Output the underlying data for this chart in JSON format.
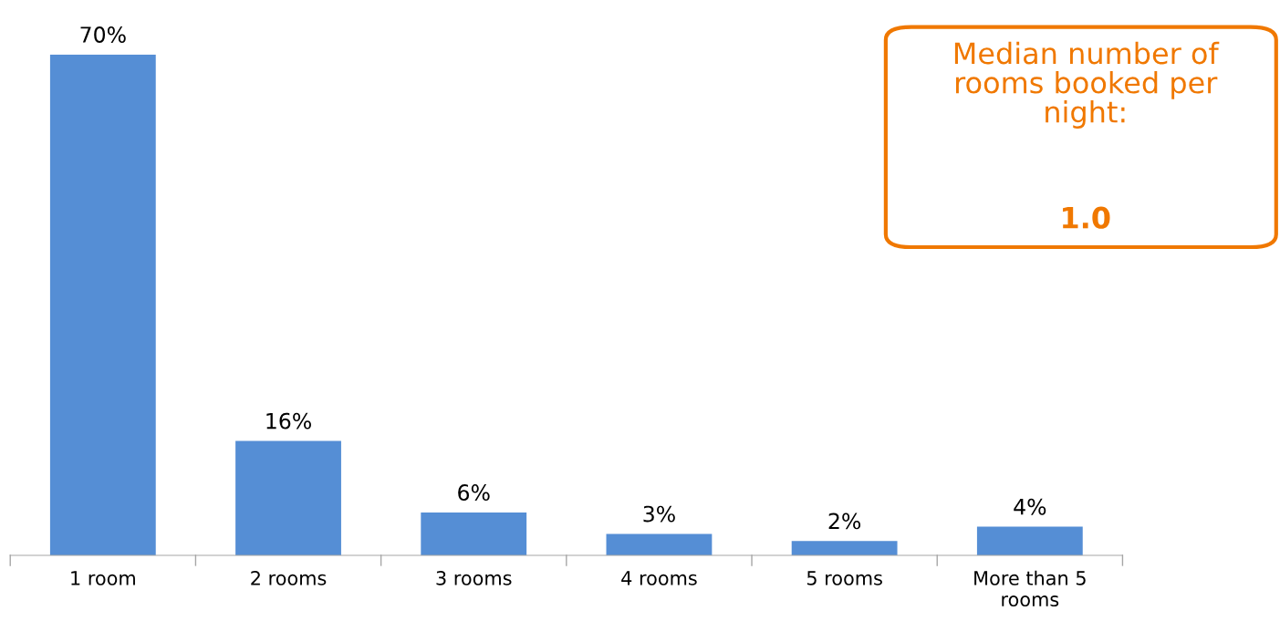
{
  "chart_data": {
    "type": "bar",
    "categories": [
      "1 room",
      "2 rooms",
      "3 rooms",
      "4 rooms",
      "5 rooms",
      "More than 5 rooms"
    ],
    "values": [
      70,
      16,
      6,
      3,
      2,
      4
    ],
    "value_labels": [
      "70%",
      "16%",
      "6%",
      "3%",
      "2%",
      "4%"
    ],
    "color": "#558ed5",
    "annotations": [
      "Median number of rooms booked per night:",
      "1.0"
    ],
    "grid": false,
    "legend": false
  }
}
